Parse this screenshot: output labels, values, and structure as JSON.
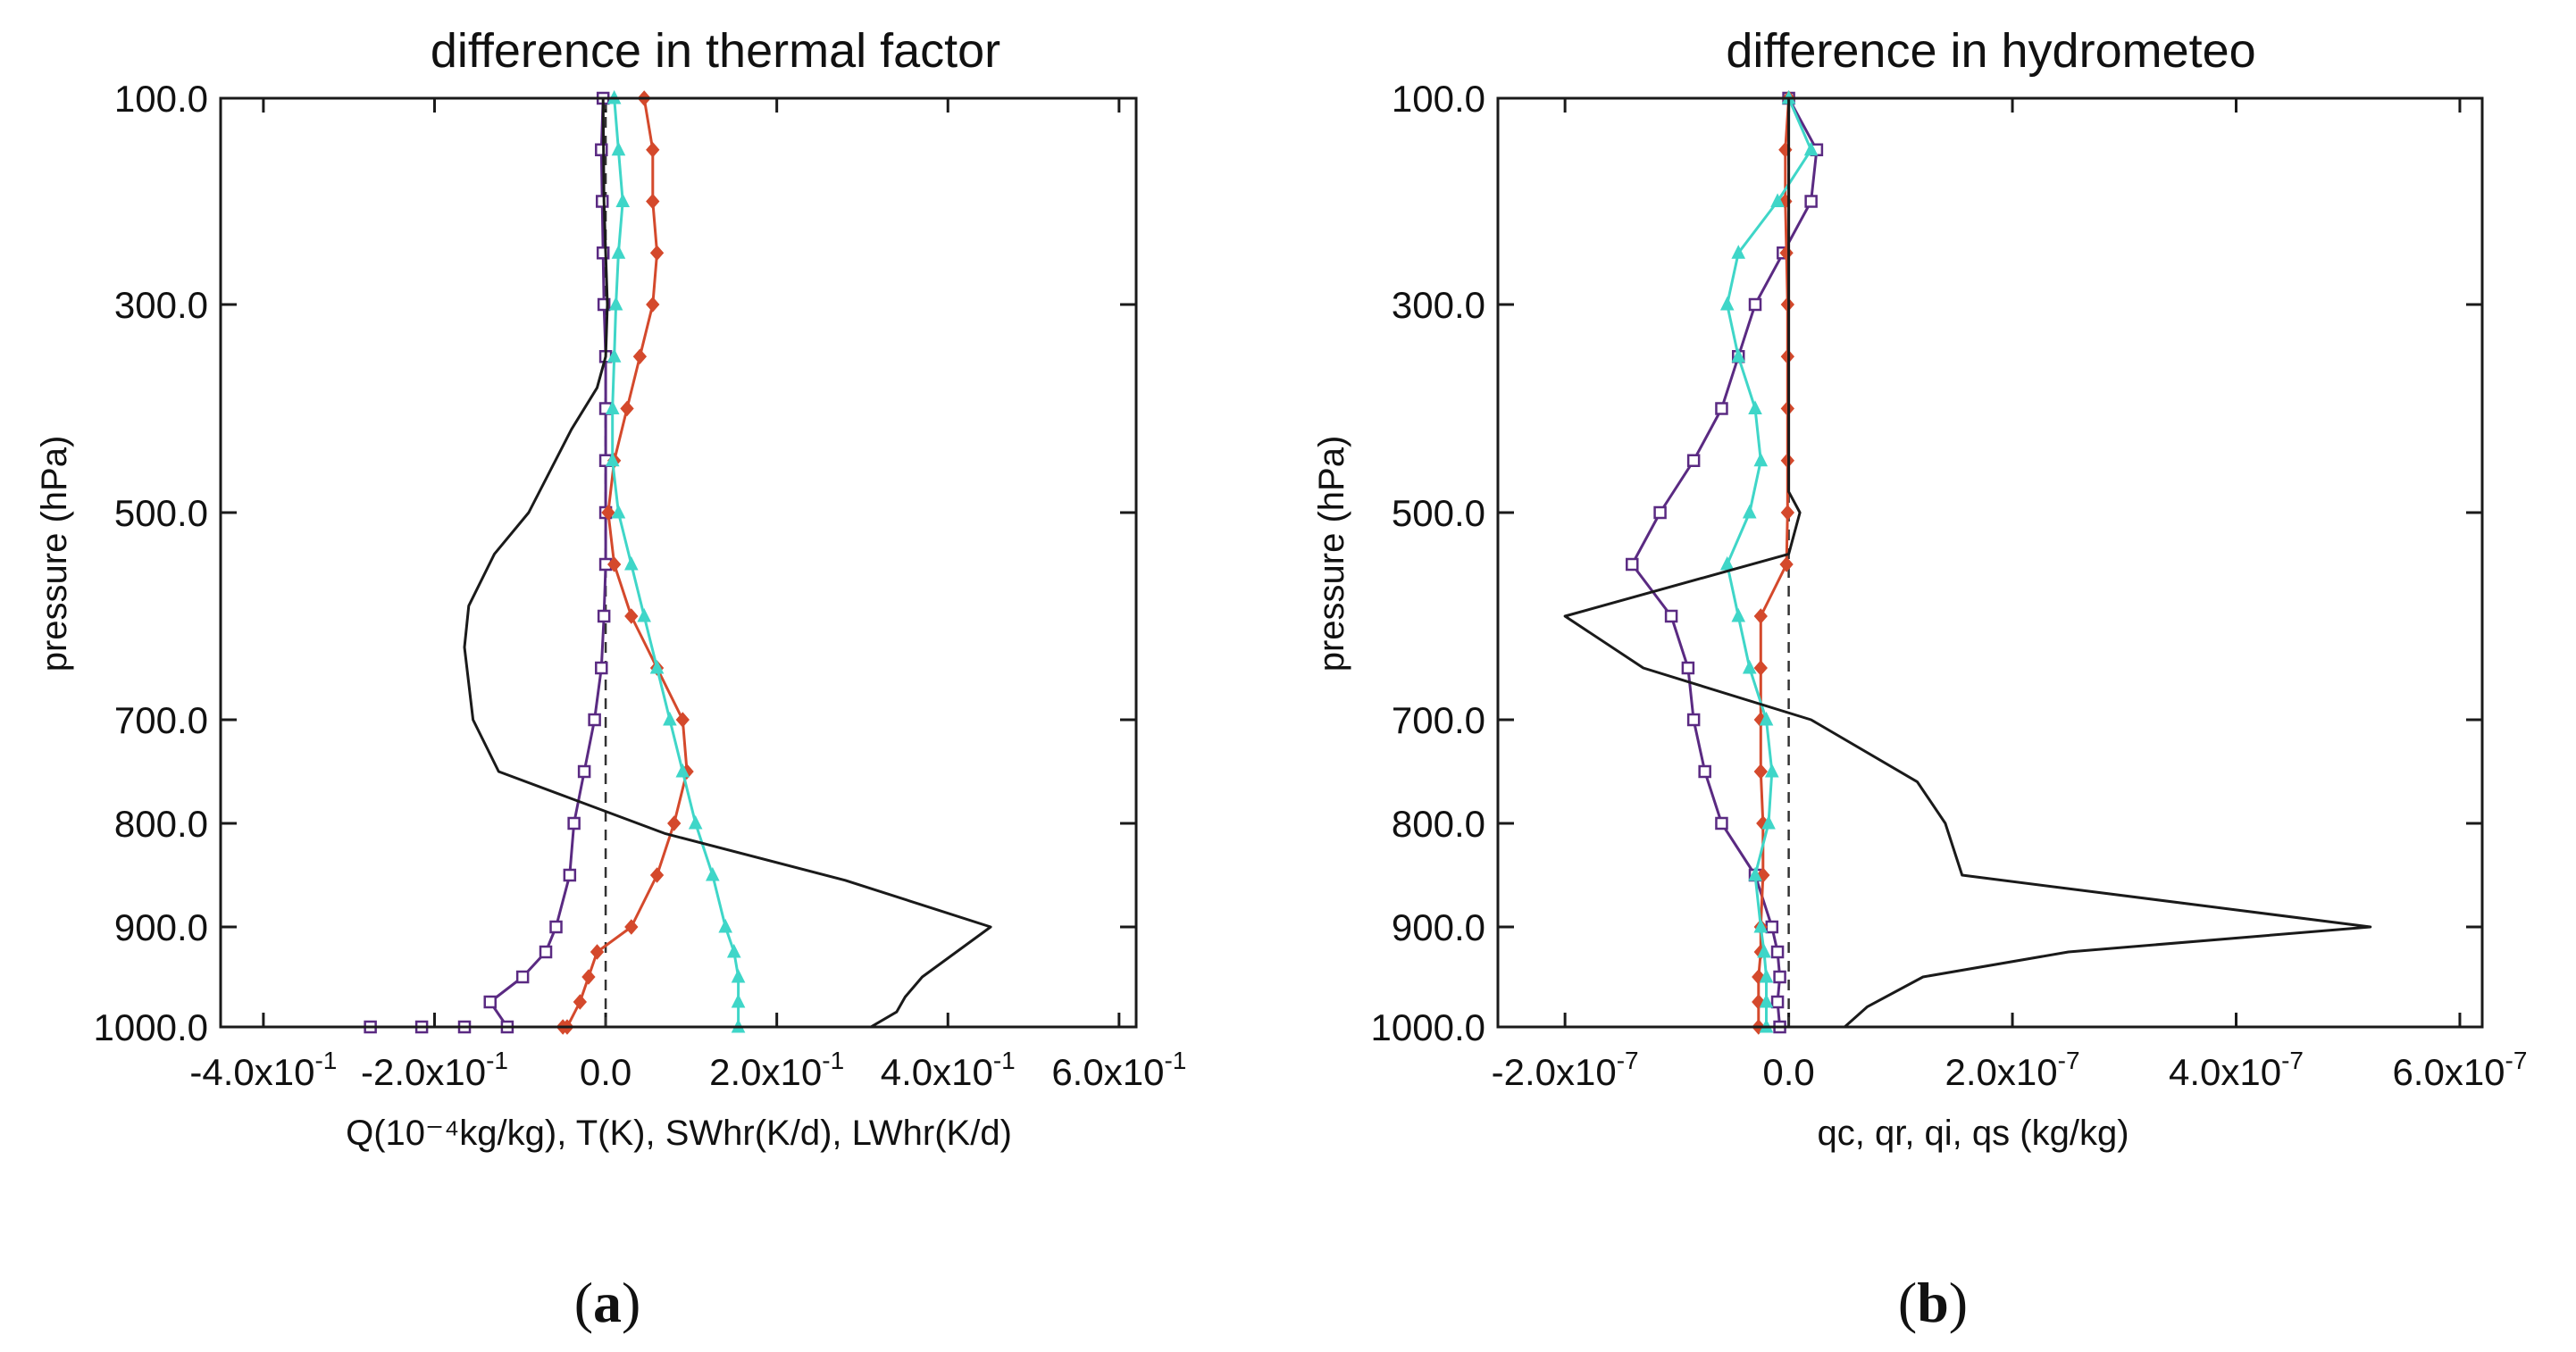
{
  "figure_labels": {
    "a": {
      "open": "(",
      "letter": "a",
      "close": ")"
    },
    "b": {
      "open": "(",
      "letter": "b",
      "close": ")"
    }
  },
  "chart_data": [
    {
      "type": "line",
      "title": "difference in thermal factor",
      "xlabel": "Q(10⁻⁴kg/kg),  T(K),  SWhr(K/d),  LWhr(K/d)",
      "ylabel": "pressure (hPa)",
      "xlim": [
        -0.45,
        0.62
      ],
      "ylim": [
        100,
        1000
      ],
      "xticks": [
        {
          "value": -0.4,
          "mant": "-4.0x10",
          "exp": "-1"
        },
        {
          "value": -0.2,
          "mant": "-2.0x10",
          "exp": "-1"
        },
        {
          "value": 0.0,
          "mant": "0.0",
          "exp": ""
        },
        {
          "value": 0.2,
          "mant": "2.0x10",
          "exp": "-1"
        },
        {
          "value": 0.4,
          "mant": "4.0x10",
          "exp": "-1"
        },
        {
          "value": 0.6,
          "mant": "6.0x10",
          "exp": "-1"
        }
      ],
      "yticks": [
        {
          "value": 100,
          "label": "100.0"
        },
        {
          "value": 300,
          "label": "300.0"
        },
        {
          "value": 500,
          "label": "500.0"
        },
        {
          "value": 700,
          "label": "700.0"
        },
        {
          "value": 800,
          "label": "800.0"
        },
        {
          "value": 900,
          "label": "900.0"
        },
        {
          "value": 1000,
          "label": "1000.0"
        }
      ],
      "zero_line_x": 0.0,
      "series": [
        {
          "name": "Q",
          "color": "#5a2a82",
          "marker": "square",
          "x": [
            -0.003,
            -0.005,
            -0.004,
            -0.003,
            -0.002,
            0.0,
            0.0,
            0.0,
            0.0,
            0.0,
            -0.002,
            -0.005,
            -0.013,
            -0.025,
            -0.037,
            -0.042,
            -0.058,
            -0.07,
            -0.097,
            -0.135,
            -0.115,
            -0.165,
            -0.215,
            -0.275
          ],
          "p": [
            100,
            150,
            200,
            250,
            300,
            350,
            400,
            450,
            500,
            550,
            600,
            650,
            700,
            750,
            800,
            850,
            900,
            925,
            950,
            975,
            1000,
            1000,
            1000,
            1000
          ]
        },
        {
          "name": "T",
          "color": "#d4492c",
          "marker": "diamond",
          "x": [
            0.045,
            0.055,
            0.055,
            0.06,
            0.055,
            0.04,
            0.025,
            0.01,
            0.003,
            0.01,
            0.03,
            0.06,
            0.09,
            0.095,
            0.08,
            0.06,
            0.03,
            -0.01,
            -0.02,
            -0.03,
            -0.045,
            -0.05
          ],
          "p": [
            100,
            150,
            200,
            250,
            300,
            350,
            400,
            450,
            500,
            550,
            600,
            650,
            700,
            750,
            800,
            850,
            900,
            925,
            950,
            975,
            1000,
            1000
          ]
        },
        {
          "name": "SWhr",
          "color": "#3fd6c8",
          "marker": "triangle",
          "x": [
            0.01,
            0.015,
            0.02,
            0.015,
            0.012,
            0.01,
            0.008,
            0.008,
            0.015,
            0.03,
            0.045,
            0.06,
            0.075,
            0.09,
            0.105,
            0.125,
            0.14,
            0.15,
            0.155,
            0.155,
            0.155
          ],
          "p": [
            100,
            150,
            200,
            250,
            300,
            350,
            400,
            450,
            500,
            550,
            600,
            650,
            700,
            750,
            800,
            850,
            900,
            925,
            950,
            975,
            1000
          ]
        },
        {
          "name": "LWhr",
          "color": "#1a1a1a",
          "marker": "none",
          "x": [
            -0.003,
            -0.002,
            0.0,
            0.002,
            0.0,
            -0.01,
            -0.04,
            -0.09,
            -0.13,
            -0.16,
            -0.165,
            -0.155,
            -0.125,
            0.07,
            0.28,
            0.45,
            0.41,
            0.37,
            0.35,
            0.34,
            0.31
          ],
          "p": [
            100,
            200,
            250,
            300,
            350,
            380,
            420,
            500,
            540,
            590,
            630,
            700,
            750,
            810,
            855,
            900,
            925,
            950,
            970,
            985,
            1000
          ]
        }
      ]
    },
    {
      "type": "line",
      "title": "difference in hydrometeo",
      "xlabel": "qc,  qr,  qi,  qs (kg/kg)",
      "ylabel": "pressure (hPa)",
      "xlim": [
        -2.6e-07,
        6.2e-07
      ],
      "ylim": [
        100,
        1000
      ],
      "xticks": [
        {
          "value": -2e-07,
          "mant": "-2.0x10",
          "exp": "-7"
        },
        {
          "value": 0,
          "mant": "0.0",
          "exp": ""
        },
        {
          "value": 2e-07,
          "mant": "2.0x10",
          "exp": "-7"
        },
        {
          "value": 4e-07,
          "mant": "4.0x10",
          "exp": "-7"
        },
        {
          "value": 6e-07,
          "mant": "6.0x10",
          "exp": "-7"
        }
      ],
      "yticks": [
        {
          "value": 100,
          "label": "100.0"
        },
        {
          "value": 300,
          "label": "300.0"
        },
        {
          "value": 500,
          "label": "500.0"
        },
        {
          "value": 700,
          "label": "700.0"
        },
        {
          "value": 800,
          "label": "800.0"
        },
        {
          "value": 900,
          "label": "900.0"
        },
        {
          "value": 1000,
          "label": "1000.0"
        }
      ],
      "zero_line_x": 0.0,
      "series": [
        {
          "name": "qc",
          "color": "#5a2a82",
          "marker": "square",
          "x": [
            0.0,
            2.5e-08,
            2e-08,
            -5e-09,
            -3e-08,
            -4.5e-08,
            -6e-08,
            -8.5e-08,
            -1.15e-07,
            -1.4e-07,
            -1.05e-07,
            -9e-08,
            -8.5e-08,
            -7.5e-08,
            -6e-08,
            -3e-08,
            -1.5e-08,
            -1e-08,
            -8e-09,
            -1e-08,
            -8e-09
          ],
          "p": [
            100,
            150,
            200,
            250,
            300,
            350,
            400,
            450,
            500,
            550,
            600,
            650,
            700,
            750,
            800,
            850,
            900,
            925,
            950,
            975,
            1000
          ]
        },
        {
          "name": "qr",
          "color": "#d4492c",
          "marker": "diamond",
          "x": [
            0.0,
            -3e-09,
            -3e-09,
            -2e-09,
            -1e-09,
            -1e-09,
            -1e-09,
            -1e-09,
            -1e-09,
            -2e-09,
            -2.5e-08,
            -2.5e-08,
            -2.5e-08,
            -2.5e-08,
            -2.3e-08,
            -2.3e-08,
            -2.5e-08,
            -2.5e-08,
            -2.7e-08,
            -2.7e-08,
            -2.7e-08
          ],
          "p": [
            100,
            150,
            200,
            250,
            300,
            350,
            400,
            450,
            500,
            550,
            600,
            650,
            700,
            750,
            800,
            850,
            900,
            925,
            950,
            975,
            1000
          ]
        },
        {
          "name": "qi",
          "color": "#3fd6c8",
          "marker": "triangle",
          "x": [
            0.0,
            2e-08,
            -1e-08,
            -4.5e-08,
            -5.5e-08,
            -4.5e-08,
            -3e-08,
            -2.5e-08,
            -3.5e-08,
            -5.5e-08,
            -4.5e-08,
            -3.5e-08,
            -2e-08,
            -1.5e-08,
            -1.8e-08,
            -3e-08,
            -2.5e-08,
            -2.2e-08,
            -2e-08,
            -2e-08,
            -2e-08
          ],
          "p": [
            100,
            150,
            200,
            250,
            300,
            350,
            400,
            450,
            500,
            550,
            600,
            650,
            700,
            750,
            800,
            850,
            900,
            925,
            950,
            975,
            1000
          ]
        },
        {
          "name": "qs",
          "color": "#1a1a1a",
          "marker": "none",
          "x": [
            0.0,
            0.0,
            0.0,
            0.0,
            0.0,
            0.0,
            0.0,
            0.0,
            1e-08,
            0.0,
            -2e-07,
            -1.3e-07,
            2e-08,
            1.15e-07,
            1.4e-07,
            1.55e-07,
            5.2e-07,
            2.5e-07,
            1.2e-07,
            7e-08,
            5e-08
          ],
          "p": [
            100,
            200,
            250,
            300,
            350,
            400,
            450,
            480,
            500,
            540,
            600,
            650,
            700,
            760,
            800,
            850,
            900,
            925,
            950,
            980,
            1000
          ]
        }
      ]
    }
  ]
}
